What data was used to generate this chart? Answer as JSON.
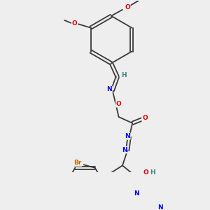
{
  "bg_color": "#eeeeee",
  "bond_color": "#3a3a3a",
  "atom_colors": {
    "N": "#0000ee",
    "O": "#dd0000",
    "Br": "#cc6600",
    "H": "#408080",
    "C": "#3a3a3a"
  },
  "font_size": 6.5,
  "line_width": 1.3
}
